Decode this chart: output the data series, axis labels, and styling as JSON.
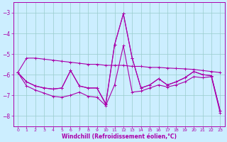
{
  "xlabel": "Windchill (Refroidissement éolien,°C)",
  "bg_color": "#cceeff",
  "line_color": "#aa00aa",
  "grid_color": "#99cccc",
  "xlim": [
    -0.5,
    23.5
  ],
  "ylim": [
    -8.5,
    -2.5
  ],
  "yticks": [
    -8,
    -7,
    -6,
    -5,
    -4,
    -3
  ],
  "xticks": [
    0,
    1,
    2,
    3,
    4,
    5,
    6,
    7,
    8,
    9,
    10,
    11,
    12,
    13,
    14,
    15,
    16,
    17,
    18,
    19,
    20,
    21,
    22,
    23
  ],
  "line1_x": [
    0,
    1,
    2,
    3,
    4,
    5,
    6,
    7,
    8,
    9,
    10,
    11,
    12,
    13,
    14,
    15,
    16,
    17,
    18,
    19,
    20,
    21,
    22,
    23
  ],
  "line1_y": [
    -5.9,
    -5.2,
    -5.2,
    -5.25,
    -5.3,
    -5.35,
    -5.4,
    -5.45,
    -5.5,
    -5.5,
    -5.55,
    -5.55,
    -5.55,
    -5.6,
    -5.6,
    -5.65,
    -5.65,
    -5.68,
    -5.7,
    -5.72,
    -5.75,
    -5.8,
    -5.85,
    -5.9
  ],
  "line2_x": [
    0,
    1,
    2,
    3,
    4,
    5,
    6,
    7,
    8,
    9,
    10,
    11,
    12,
    13,
    14,
    15,
    16,
    17,
    18,
    19,
    20,
    21,
    22,
    23
  ],
  "line2_y": [
    -5.9,
    -6.35,
    -6.55,
    -6.65,
    -6.7,
    -6.65,
    -5.8,
    -6.55,
    -6.65,
    -6.65,
    -7.4,
    -4.55,
    -3.05,
    -5.2,
    -6.65,
    -6.5,
    -6.2,
    -6.5,
    -6.35,
    -6.15,
    -5.85,
    -6.0,
    -6.05,
    -7.75
  ],
  "line3_x": [
    0,
    1,
    2,
    3,
    4,
    5,
    6,
    7,
    8,
    9,
    10,
    11,
    12,
    13,
    14,
    15,
    16,
    17,
    18,
    19,
    20,
    21,
    22,
    23
  ],
  "line3_y": [
    -5.9,
    -6.35,
    -6.55,
    -6.65,
    -6.7,
    -6.65,
    -5.8,
    -6.55,
    -6.65,
    -6.65,
    -7.45,
    -4.55,
    -3.05,
    -5.2,
    -6.65,
    -6.5,
    -6.2,
    -6.5,
    -6.35,
    -6.15,
    -5.85,
    -6.0,
    -6.05,
    -7.75
  ],
  "line4_x": [
    0,
    1,
    2,
    3,
    4,
    5,
    6,
    7,
    8,
    9,
    10,
    11,
    12,
    13,
    14,
    15,
    16,
    17,
    18,
    19,
    20,
    21,
    22,
    23
  ],
  "line4_y": [
    -5.9,
    -6.55,
    -6.75,
    -6.9,
    -7.05,
    -7.1,
    -7.0,
    -6.85,
    -7.05,
    -7.1,
    -7.5,
    -6.5,
    -4.6,
    -6.85,
    -6.8,
    -6.65,
    -6.5,
    -6.6,
    -6.5,
    -6.35,
    -6.1,
    -6.15,
    -6.1,
    -7.85
  ]
}
